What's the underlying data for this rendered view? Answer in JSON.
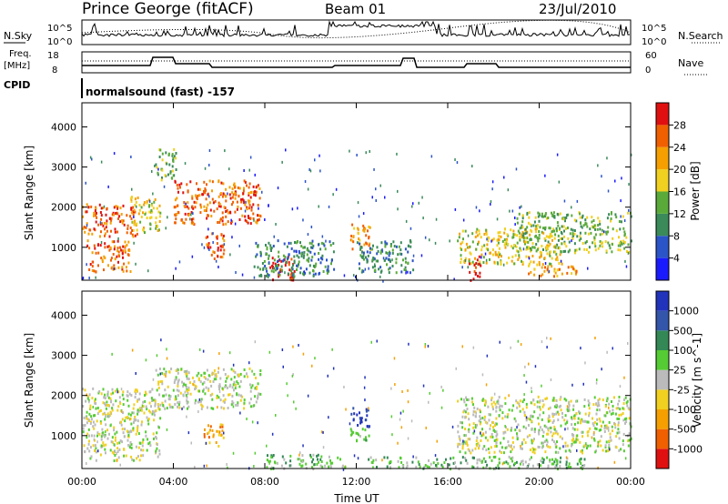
{
  "header": {
    "station": "Prince George (fitACF)",
    "beam": "Beam 01",
    "date": "23/Jul/2010"
  },
  "noise_panel": {
    "left_label": "N.Sky",
    "right_label": "N.Search",
    "left_ticks": [
      "10^5",
      "10^0"
    ],
    "right_ticks": [
      "10^5",
      "10^0"
    ]
  },
  "freq_panel": {
    "left_label_1": "Freq.",
    "left_label_2": "[MHz]",
    "right_label": "Nave",
    "left_ticks": [
      "18",
      "8"
    ],
    "right_ticks": [
      "60",
      "0"
    ]
  },
  "cpid_panel": {
    "label": "CPID",
    "text": "normalsound (fast) -157"
  },
  "colors": {
    "power_scale": [
      "#1a1aff",
      "#2b54c8",
      "#3a8a5a",
      "#5aaa3a",
      "#f0d020",
      "#f5a000",
      "#f06000",
      "#e01010"
    ],
    "velocity_scale": [
      "#2233bb",
      "#3355aa",
      "#338855",
      "#55cc33",
      "#bbbbbb",
      "#f0d020",
      "#f5a000",
      "#f06000",
      "#e01010"
    ]
  },
  "chart_data": [
    {
      "type": "heatmap",
      "title": "Power",
      "ylabel": "Slant Range [km]",
      "ylim": [
        180,
        4600
      ],
      "y_ticks": [
        "1000",
        "2000",
        "3000",
        "4000"
      ],
      "colorbar_label": "Power [dB]",
      "colorbar_ticks": [
        "28",
        "24",
        "20",
        "16",
        "12",
        "8",
        "4"
      ],
      "blobs": [
        {
          "t0": 0.0,
          "t1": 2.4,
          "r0": 1300,
          "r1": 2100,
          "level": 6
        },
        {
          "t0": 0.2,
          "t1": 2.1,
          "r0": 400,
          "r1": 1200,
          "level": 6
        },
        {
          "t0": 2.1,
          "t1": 3.4,
          "r0": 1400,
          "r1": 2300,
          "level": 4
        },
        {
          "t0": 4.0,
          "t1": 7.8,
          "r0": 1600,
          "r1": 2700,
          "level": 6
        },
        {
          "t0": 3.2,
          "t1": 4.1,
          "r0": 2700,
          "r1": 3500,
          "level": 3
        },
        {
          "t0": 5.3,
          "t1": 6.2,
          "r0": 700,
          "r1": 1400,
          "level": 6
        },
        {
          "t0": 8.2,
          "t1": 9.3,
          "r0": 200,
          "r1": 800,
          "level": 7
        },
        {
          "t0": 7.5,
          "t1": 11.0,
          "r0": 300,
          "r1": 1200,
          "level": 2
        },
        {
          "t0": 11.7,
          "t1": 12.6,
          "r0": 900,
          "r1": 1600,
          "level": 5
        },
        {
          "t0": 12.0,
          "t1": 14.5,
          "r0": 400,
          "r1": 1200,
          "level": 2
        },
        {
          "t0": 16.4,
          "t1": 21.0,
          "r0": 600,
          "r1": 1500,
          "level": 4
        },
        {
          "t0": 16.9,
          "t1": 17.4,
          "r0": 200,
          "r1": 800,
          "level": 7
        },
        {
          "t0": 19.0,
          "t1": 24.0,
          "r0": 900,
          "r1": 1900,
          "level": 3
        },
        {
          "t0": 19.4,
          "t1": 21.6,
          "r0": 300,
          "r1": 600,
          "level": 5
        }
      ]
    },
    {
      "type": "heatmap",
      "title": "Velocity",
      "ylabel": "Slant Range [km]",
      "xlabel": "Time UT",
      "ylim": [
        180,
        4600
      ],
      "xlim": [
        0,
        24
      ],
      "x_ticks": [
        "00:00",
        "04:00",
        "08:00",
        "12:00",
        "16:00",
        "20:00",
        "00:00"
      ],
      "y_ticks": [
        "1000",
        "2000",
        "3000",
        "4000"
      ],
      "colorbar_label": "Velocity [m s^-1]",
      "colorbar_ticks": [
        "1000",
        "500",
        "100",
        "25",
        "-25",
        "-100",
        "-500",
        "-1000"
      ],
      "blobs": [
        {
          "t0": 0.0,
          "t1": 3.4,
          "r0": 400,
          "r1": 2200,
          "level": 4
        },
        {
          "t0": 3.2,
          "t1": 7.8,
          "r0": 1700,
          "r1": 2700,
          "level": 4
        },
        {
          "t0": 5.3,
          "t1": 6.2,
          "r0": 750,
          "r1": 1350,
          "level": 6
        },
        {
          "t0": 11.7,
          "t1": 12.6,
          "r0": 1250,
          "r1": 1750,
          "level": 0
        },
        {
          "t0": 11.7,
          "t1": 12.6,
          "r0": 900,
          "r1": 1250,
          "level": 3
        },
        {
          "t0": 8.0,
          "t1": 11.5,
          "r0": 200,
          "r1": 550,
          "level": 3
        },
        {
          "t0": 12.5,
          "t1": 22.0,
          "r0": 200,
          "r1": 500,
          "level": 3
        },
        {
          "t0": 16.4,
          "t1": 24.0,
          "r0": 600,
          "r1": 2000,
          "level": 4
        }
      ]
    }
  ]
}
